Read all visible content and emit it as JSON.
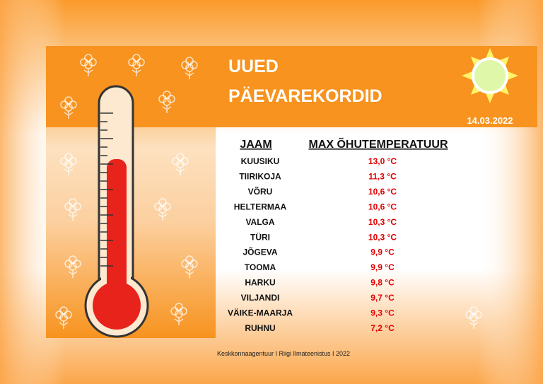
{
  "header": {
    "title_lines": [
      "UUED",
      "PÄEVAREKORDID"
    ],
    "date": "14.03.2022"
  },
  "table": {
    "headers": [
      "JAAM",
      "MAX ÕHUTEMPERATUUR"
    ],
    "rows": [
      [
        "KUUSIKU",
        "13,0 °C"
      ],
      [
        "TIIRIKOJA",
        "11,3 °C"
      ],
      [
        "VÕRU",
        "10,6 °C"
      ],
      [
        "HELTERMAA",
        "10,6 °C"
      ],
      [
        "VALGA",
        "10,3 °C"
      ],
      [
        "TÜRI",
        "10,3 °C"
      ],
      [
        "JÕGEVA",
        "9,9 °C"
      ],
      [
        "TOOMA",
        "9,9 °C"
      ],
      [
        "HARKU",
        "9,8 °C"
      ],
      [
        "VILJANDI",
        "9,7 °C"
      ],
      [
        "VÄIKE-MAARJA",
        "9,3 °C"
      ],
      [
        "RUHNU",
        "7,2 °C"
      ]
    ]
  },
  "footer": "Keskkonnaagentuur I Riigi Ilmateenistus I 2022"
}
